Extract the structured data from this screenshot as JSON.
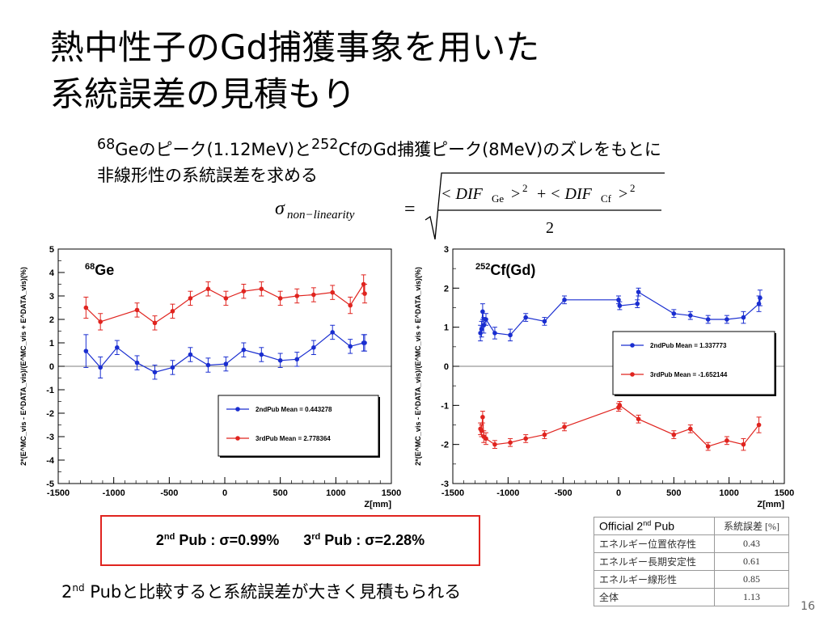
{
  "slide": {
    "title_line1": "熱中性子のGd捕獲事象を用いた",
    "title_line2": "系統誤差の見積もり",
    "subtitle": {
      "ge_sup": "68",
      "part1": "Geのピーク(1.12MeV)と",
      "cf_sup": "252",
      "part2": "CfのGd捕獲ピーク(8MeV)のズレをもとに",
      "line2": "非線形性の系統誤差を求める"
    },
    "formula": {
      "lhs": "σ",
      "lhs_sub": "non−linearity",
      "numerator_t1": "< DIF",
      "numerator_t1_sub": "Ge",
      "numerator_t2": "< DIF",
      "numerator_t2_sub": "Cf",
      "exponent": "2",
      "denominator": "2"
    },
    "result": {
      "nd": "nd",
      "second_pub": "2",
      "second_text": " Pub : σ=0.99%",
      "rd": "rd",
      "third_pub": "3",
      "third_text": " Pub : σ=2.28%"
    },
    "bottom_note": {
      "num": "2",
      "sup": "nd",
      "text": " Pubと比較すると系統誤差が大きく見積もられる"
    },
    "official_table": {
      "header_label": "Official 2",
      "header_sup": "nd",
      "header_suffix": " Pub",
      "header_value": "系統誤差 [%]",
      "rows": [
        {
          "label": "エネルギー位置依存性",
          "value": "0.43"
        },
        {
          "label": "エネルギー長期安定性",
          "value": "0.61"
        },
        {
          "label": "エネルギー線形性",
          "value": "0.85"
        },
        {
          "label": "全体",
          "value": "1.13"
        }
      ]
    },
    "page_number": "16"
  },
  "chart_data": [
    {
      "type": "scatter",
      "label": "68Ge",
      "label_sup": "68",
      "label_main": "Ge",
      "xlabel": "Z[mm]",
      "ylabel": "2*(E^MC_vis - E^DATA_vis)/(E^MC_vis + E^DATA_vis)(%)",
      "xlim": [
        -1500,
        1500
      ],
      "ylim": [
        -5,
        5
      ],
      "xticks": [
        "-1500",
        "-1000",
        "-500",
        "0",
        "500",
        "1000",
        "1500"
      ],
      "yticks": [
        "-5",
        "-4",
        "-3",
        "-2",
        "-1",
        "0",
        "1",
        "2",
        "3",
        "4",
        "5"
      ],
      "series": [
        {
          "name": "2ndPub Mean = 0.443278",
          "color": "#1a2ed0",
          "x": [
            -1250,
            -1120,
            -970,
            -790,
            -630,
            -470,
            -310,
            -150,
            10,
            170,
            330,
            500,
            650,
            800,
            970,
            1130,
            1250,
            1260
          ],
          "y": [
            0.65,
            -0.05,
            0.8,
            0.15,
            -0.25,
            -0.05,
            0.5,
            0.05,
            0.1,
            0.7,
            0.5,
            0.25,
            0.3,
            0.8,
            1.45,
            0.85,
            1.0,
            1.0
          ],
          "err": [
            0.7,
            0.45,
            0.3,
            0.3,
            0.3,
            0.3,
            0.3,
            0.3,
            0.3,
            0.3,
            0.3,
            0.3,
            0.3,
            0.3,
            0.3,
            0.3,
            0.35,
            0.35
          ]
        },
        {
          "name": "3rdPub Mean = 2.778364",
          "color": "#e0241f",
          "x": [
            -1250,
            -1120,
            -790,
            -630,
            -470,
            -310,
            -150,
            10,
            170,
            330,
            500,
            650,
            800,
            970,
            1130,
            1250,
            1260
          ],
          "y": [
            2.5,
            1.9,
            2.4,
            1.85,
            2.35,
            2.9,
            3.3,
            2.9,
            3.2,
            3.3,
            2.9,
            3.0,
            3.05,
            3.15,
            2.6,
            3.5,
            3.1
          ],
          "err": [
            0.45,
            0.35,
            0.3,
            0.3,
            0.3,
            0.3,
            0.3,
            0.3,
            0.3,
            0.3,
            0.3,
            0.3,
            0.3,
            0.3,
            0.35,
            0.4,
            0.4
          ]
        }
      ]
    },
    {
      "type": "scatter",
      "label": "252Cf(Gd)",
      "label_sup": "252",
      "label_main": "Cf(Gd)",
      "xlabel": "Z[mm]",
      "ylabel": "2*(E^MC_vis - E^DATA_vis)/(E^MC_vis + E^DATA_vis)(%)",
      "xlim": [
        -1500,
        1500
      ],
      "ylim": [
        -3,
        3
      ],
      "xticks": [
        "-1500",
        "-1000",
        "-500",
        "0",
        "500",
        "1000",
        "1500"
      ],
      "yticks": [
        "-3",
        "-2",
        "-1",
        "0",
        "1",
        "2",
        "3"
      ],
      "series": [
        {
          "name": "2ndPub Mean = 1.337773",
          "color": "#1a2ed0",
          "x": [
            -1250,
            -1240,
            -1230,
            -1220,
            -1200,
            -1120,
            -980,
            -840,
            -670,
            -490,
            0,
            10,
            170,
            180,
            500,
            650,
            810,
            980,
            1130,
            1270,
            1280
          ],
          "y": [
            0.85,
            0.95,
            1.4,
            1.05,
            1.2,
            0.85,
            0.8,
            1.25,
            1.15,
            1.7,
            1.7,
            1.55,
            1.6,
            1.9,
            1.35,
            1.3,
            1.2,
            1.2,
            1.25,
            1.6,
            1.75
          ],
          "err": [
            0.2,
            0.2,
            0.2,
            0.2,
            0.15,
            0.15,
            0.15,
            0.1,
            0.1,
            0.1,
            0.1,
            0.1,
            0.1,
            0.1,
            0.1,
            0.1,
            0.1,
            0.1,
            0.15,
            0.2,
            0.2
          ]
        },
        {
          "name": "3rdPub Mean = -1.652144",
          "color": "#e0241f",
          "x": [
            -1250,
            -1240,
            -1230,
            -1220,
            -1200,
            -1120,
            -980,
            -840,
            -670,
            -490,
            0,
            10,
            180,
            500,
            650,
            810,
            980,
            1130,
            1270
          ],
          "y": [
            -1.6,
            -1.65,
            -1.3,
            -1.8,
            -1.85,
            -2.0,
            -1.95,
            -1.85,
            -1.75,
            -1.55,
            -1.05,
            -1.0,
            -1.35,
            -1.75,
            -1.6,
            -2.05,
            -1.9,
            -2.0,
            -1.5
          ],
          "err": [
            0.15,
            0.15,
            0.15,
            0.15,
            0.15,
            0.1,
            0.1,
            0.1,
            0.1,
            0.1,
            0.1,
            0.1,
            0.1,
            0.1,
            0.1,
            0.1,
            0.1,
            0.15,
            0.2
          ]
        }
      ]
    }
  ]
}
